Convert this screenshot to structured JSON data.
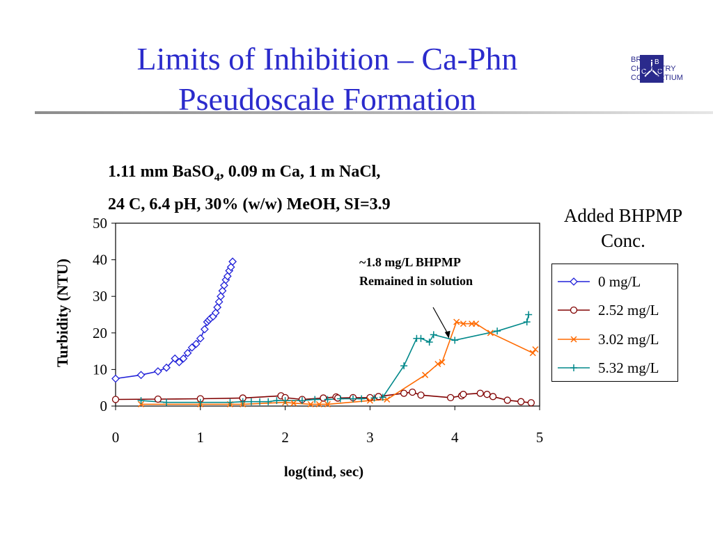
{
  "slide": {
    "title_line1": "Limits of Inhibition – Ca-Phn",
    "title_line2": "Pseudoscale Formation",
    "logo": {
      "line1": "BRINE",
      "line2": "CHEMISTRY",
      "line3": "CONSORTIUM",
      "letters": [
        "B",
        "C",
        "C"
      ],
      "color": "#2a2a8c"
    },
    "subtitle_line1": "1.11 mm BaSO4, 0.09 m Ca, 1 m NaCl,",
    "subtitle_line2": "24 C, 6.4 pH, 30% (w/w) MeOH, SI=3.9",
    "legend_title_line1": "Added BHPMP",
    "legend_title_line2": "Conc.",
    "annotation_line1": "~1.8 mg/L BHPMP",
    "annotation_line2": "Remained in solution"
  },
  "chart_data": {
    "type": "line",
    "xlabel": "log(tind, sec)",
    "ylabel": "Turbidity (NTU)",
    "xlim": [
      0,
      5
    ],
    "ylim": [
      0,
      50
    ],
    "xticks": [
      0,
      1,
      2,
      3,
      4,
      5
    ],
    "yticks": [
      0,
      10,
      20,
      30,
      40,
      50
    ],
    "grid": false,
    "legend_position": "right",
    "annotation_arrow_target": [
      3.93,
      18.5
    ],
    "series": [
      {
        "name": "0 mg/L",
        "color": "#2020d8",
        "marker": "diamond",
        "x": [
          0.0,
          0.3,
          0.5,
          0.6,
          0.7,
          0.75,
          0.8,
          0.85,
          0.9,
          0.95,
          1.0,
          1.05,
          1.08,
          1.1,
          1.12,
          1.15,
          1.18,
          1.2,
          1.22,
          1.24,
          1.26,
          1.28,
          1.3,
          1.32,
          1.34,
          1.36,
          1.38
        ],
        "y": [
          7.5,
          8.5,
          9.5,
          10.5,
          13.0,
          12.0,
          13.0,
          14.5,
          16.0,
          17.0,
          18.5,
          21.0,
          23.0,
          23.5,
          24.0,
          24.5,
          25.5,
          27.0,
          28.5,
          30.0,
          31.5,
          33.0,
          34.5,
          35.5,
          37.0,
          38.0,
          39.5
        ]
      },
      {
        "name": "2.52 mg/L",
        "color": "#800000",
        "marker": "circle",
        "x": [
          0.0,
          0.5,
          1.0,
          1.5,
          1.95,
          2.0,
          2.2,
          2.45,
          2.6,
          2.62,
          2.8,
          3.0,
          3.1,
          3.4,
          3.5,
          3.6,
          3.95,
          4.08,
          4.1,
          4.3,
          4.38,
          4.45,
          4.62,
          4.78,
          4.9
        ],
        "y": [
          1.8,
          1.9,
          2.0,
          2.2,
          2.8,
          2.3,
          1.8,
          2.2,
          2.5,
          2.2,
          2.3,
          2.3,
          2.6,
          3.5,
          3.8,
          3.0,
          2.3,
          2.8,
          3.2,
          3.5,
          3.2,
          2.6,
          1.6,
          1.2,
          0.9
        ]
      },
      {
        "name": "3.02 mg/L",
        "color": "#ff6a00",
        "marker": "x",
        "x": [
          0.3,
          1.0,
          1.35,
          1.5,
          2.0,
          2.1,
          2.3,
          2.4,
          2.5,
          3.0,
          3.2,
          3.65,
          3.8,
          3.85,
          4.02,
          4.1,
          4.2,
          4.25,
          4.42,
          4.92,
          4.95
        ],
        "y": [
          0.5,
          0.5,
          0.5,
          0.5,
          1.0,
          0.8,
          0.5,
          0.5,
          0.5,
          1.5,
          1.8,
          8.5,
          11.5,
          12.0,
          23.0,
          22.5,
          22.5,
          22.5,
          20.0,
          14.5,
          15.5
        ]
      },
      {
        "name": "5.32 mg/L",
        "color": "#00888a",
        "marker": "plus",
        "x": [
          0.3,
          0.6,
          1.0,
          1.35,
          1.5,
          1.6,
          1.7,
          1.8,
          1.9,
          2.0,
          2.2,
          2.35,
          2.5,
          2.65,
          2.8,
          2.9,
          3.05,
          3.15,
          3.4,
          3.55,
          3.6,
          3.7,
          3.75,
          4.0,
          4.5,
          4.85,
          4.87
        ],
        "y": [
          1.5,
          1.0,
          1.0,
          1.0,
          1.2,
          1.2,
          1.2,
          1.2,
          1.5,
          1.5,
          1.5,
          1.8,
          1.8,
          2.0,
          2.0,
          2.0,
          2.2,
          2.4,
          11.0,
          18.5,
          18.5,
          17.5,
          19.5,
          18.0,
          20.5,
          23.0,
          25.0
        ]
      }
    ]
  }
}
